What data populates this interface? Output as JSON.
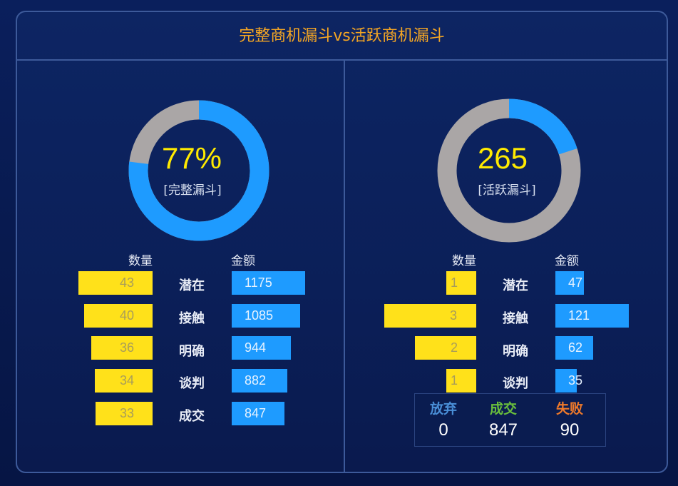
{
  "title": "完整商机漏斗vs活跃商机漏斗",
  "left": {
    "donut_value": "77%",
    "donut_label": "[完整漏斗]",
    "donut_fraction": 0.77,
    "col_count": "数量",
    "col_amount": "金额",
    "rows": [
      {
        "stage": "潜在",
        "count": "43",
        "amount": "1175"
      },
      {
        "stage": "接触",
        "count": "40",
        "amount": "1085"
      },
      {
        "stage": "明确",
        "count": "36",
        "amount": "944"
      },
      {
        "stage": "谈判",
        "count": "34",
        "amount": "882"
      },
      {
        "stage": "成交",
        "count": "33",
        "amount": "847"
      }
    ]
  },
  "right": {
    "donut_value": "265",
    "donut_label": "[活跃漏斗]",
    "donut_fraction": 0.2,
    "col_count": "数量",
    "col_amount": "金额",
    "rows": [
      {
        "stage": "潜在",
        "count": "1",
        "amount": "47"
      },
      {
        "stage": "接触",
        "count": "3",
        "amount": "121"
      },
      {
        "stage": "明确",
        "count": "2",
        "amount": "62"
      },
      {
        "stage": "谈判",
        "count": "1",
        "amount": "35"
      }
    ],
    "summary": {
      "abandon_label": "放弃",
      "abandon_value": "0",
      "deal_label": "成交",
      "deal_value": "847",
      "fail_label": "失败",
      "fail_value": "90"
    }
  },
  "colors": {
    "title": "#f5a623",
    "donut_fill": "#1e9bff",
    "donut_rest": "#aaa6a6",
    "count_bar": "#ffe11a",
    "amount_bar": "#1e9bff",
    "abandon": "#4a8fd8",
    "deal": "#6abf3c",
    "fail": "#f07a2a"
  }
}
